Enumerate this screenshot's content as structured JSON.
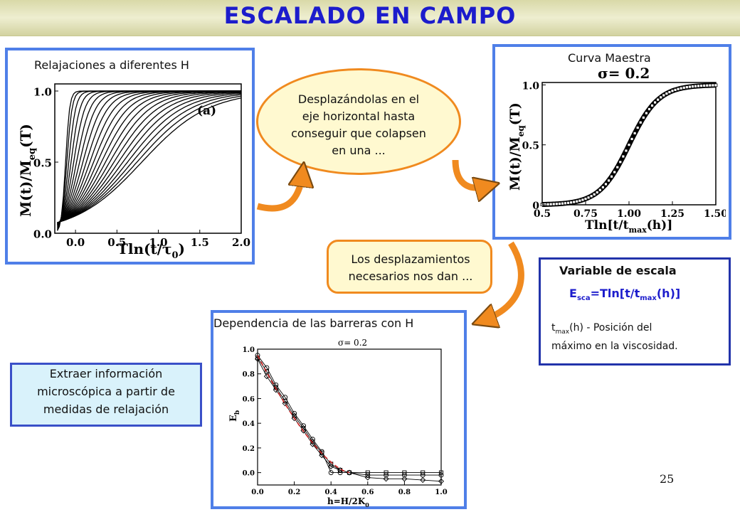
{
  "title": "ESCALADO EN CAMPO",
  "panel_relax": {
    "label": "Relajaciones a diferentes H",
    "ylabel": "M(t)/M",
    "ylabel_sub": "eq",
    "ylabel_paren": "(T)",
    "xlabel": "Tln(t/τ",
    "xlabel_sub": "0",
    "xlabel_close": ")",
    "tag": "(a)",
    "xticks": [
      "0.0",
      "0.5",
      "1.0",
      "1.5",
      "2.0"
    ],
    "yticks": [
      "0.0",
      "0.5",
      "1.0"
    ]
  },
  "ellipse_text": [
    "Desplazándolas en el",
    "eje horizontal hasta",
    "conseguir que colapsen",
    "en una ..."
  ],
  "panel_master": {
    "label": "Curva Maestra",
    "sigma": "σ= 0.2",
    "ylabel": "M(t)/M",
    "ylabel_sub": "eq",
    "ylabel_paren": "(T)",
    "xlabel": "Tln[t/t",
    "xlabel_sub": "max",
    "xlabel_close": "(h)]",
    "xticks": [
      "0.5",
      "0.75",
      "1.00",
      "1.25",
      "1.50"
    ],
    "yticks": [
      "0",
      "0.5",
      "1.0"
    ]
  },
  "roundbox_text": [
    "Los desplazamientos",
    "necesarios nos dan ..."
  ],
  "scale_var": {
    "heading": "Variable de escala",
    "E": "E",
    "E_sub": "sca",
    "eq_mid": "=Tln[t/t",
    "eq_sub": "max",
    "eq_end": "(h)]",
    "t": "t",
    "t_sub": "max",
    "desc1": "(h) - Posición del",
    "desc2": "máximo en la viscosidad."
  },
  "panel_barriers": {
    "label": "Dependencia de las barreras con H",
    "sigma": "σ= 0.2",
    "ylabel": "E",
    "ylabel_sub": "b",
    "xlabel": "h=H/2K",
    "xlabel_sub": "0",
    "xticks": [
      "0.0",
      "0.2",
      "0.4",
      "0.6",
      "0.8",
      "1.0"
    ],
    "yticks": [
      "0.0",
      "0.2",
      "0.4",
      "0.6",
      "0.8",
      "1.0"
    ]
  },
  "info_text": [
    "Extraer información",
    "microscópica a partir de",
    "medidas de relajación"
  ],
  "page_number": "25",
  "colors": {
    "accent": "#4f7fe8",
    "title": "#1c1ccc",
    "arrow": "#f08a1f",
    "dash": "#cc2222"
  }
}
